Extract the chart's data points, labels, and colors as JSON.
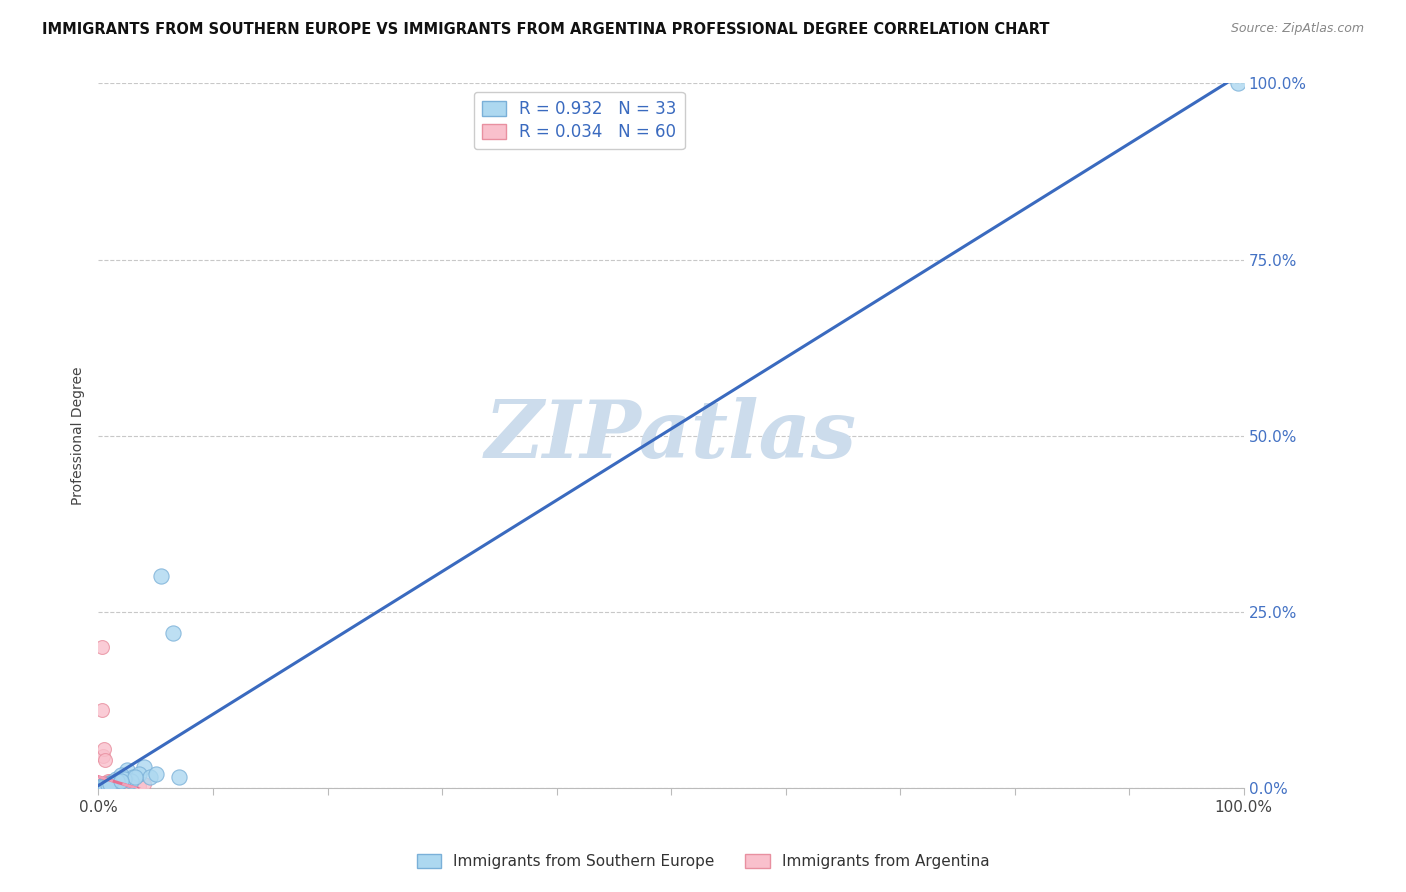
{
  "title": "IMMIGRANTS FROM SOUTHERN EUROPE VS IMMIGRANTS FROM ARGENTINA PROFESSIONAL DEGREE CORRELATION CHART",
  "source": "Source: ZipAtlas.com",
  "ylabel": "Professional Degree",
  "y_tick_values": [
    0.0,
    25.0,
    50.0,
    75.0,
    100.0
  ],
  "legend_entries": [
    {
      "label": "R = 0.932   N = 33",
      "facecolor": "#add8f0",
      "edgecolor": "#7ab0d8"
    },
    {
      "label": "R = 0.034   N = 60",
      "facecolor": "#f9c0cc",
      "edgecolor": "#e890a0"
    }
  ],
  "legend2_entries": [
    {
      "label": "Immigrants from Southern Europe",
      "facecolor": "#add8f0",
      "edgecolor": "#7ab0d8"
    },
    {
      "label": "Immigrants from Argentina",
      "facecolor": "#f9c0cc",
      "edgecolor": "#e890a0"
    }
  ],
  "blue_scatter_x": [
    1.2,
    2.5,
    0.5,
    0.8,
    3.0,
    1.5,
    4.0,
    0.3,
    5.5,
    2.0,
    1.0,
    0.7,
    6.5,
    0.4,
    3.5,
    2.8,
    0.6,
    1.8,
    4.5,
    0.9,
    1.3,
    0.5,
    2.2,
    7.0,
    0.4,
    1.6,
    0.6,
    3.2,
    5.0,
    0.8,
    1.0,
    2.0,
    99.5
  ],
  "blue_scatter_y": [
    0.8,
    2.5,
    0.3,
    0.5,
    1.5,
    1.2,
    3.0,
    0.2,
    30.0,
    1.8,
    0.6,
    0.4,
    22.0,
    0.3,
    2.0,
    1.0,
    0.3,
    0.8,
    1.5,
    0.5,
    0.7,
    0.2,
    1.2,
    1.5,
    0.2,
    0.9,
    0.3,
    1.5,
    2.0,
    0.4,
    0.5,
    1.0,
    100.0
  ],
  "pink_scatter_x": [
    0.2,
    0.5,
    0.8,
    1.0,
    0.3,
    0.4,
    0.6,
    1.2,
    0.1,
    0.7,
    0.9,
    1.5,
    0.3,
    0.5,
    0.2,
    0.4,
    0.8,
    1.1,
    0.6,
    0.3,
    0.7,
    0.5,
    0.9,
    1.3,
    0.4,
    0.2,
    0.6,
    0.8,
    1.0,
    0.3,
    0.5,
    0.7,
    0.4,
    0.6,
    0.9,
    1.2,
    0.3,
    0.5,
    0.8,
    2.0,
    3.5,
    0.2,
    0.4,
    1.8,
    0.7,
    1.5,
    0.3,
    0.6,
    0.4,
    0.5,
    0.2,
    0.8,
    2.5,
    0.5,
    0.3,
    4.0,
    0.4,
    0.6,
    0.9,
    1.0
  ],
  "pink_scatter_y": [
    0.3,
    0.5,
    0.8,
    1.0,
    20.0,
    4.5,
    0.3,
    0.5,
    0.2,
    0.7,
    0.4,
    0.8,
    0.3,
    0.2,
    0.4,
    0.6,
    1.0,
    0.5,
    0.4,
    11.0,
    0.6,
    5.5,
    0.5,
    1.0,
    0.3,
    0.2,
    0.4,
    0.6,
    0.8,
    0.3,
    0.5,
    0.7,
    0.3,
    4.0,
    0.5,
    0.8,
    0.2,
    0.4,
    0.6,
    0.5,
    0.3,
    0.1,
    0.3,
    1.0,
    0.4,
    0.6,
    0.2,
    0.3,
    0.2,
    0.4,
    0.1,
    0.5,
    0.8,
    0.3,
    0.2,
    0.5,
    0.2,
    0.3,
    0.4,
    0.6
  ],
  "blue_scatter_size": 120,
  "pink_scatter_size": 100,
  "blue_color": "#add8f0",
  "blue_edge_color": "#7ab0d8",
  "pink_color": "#f9c0cc",
  "pink_edge_color": "#e890a0",
  "blue_line_color": "#3a6abf",
  "pink_solid_line_color": "#e87090",
  "pink_dash_line_color": "#f0a0b8",
  "xlim": [
    0,
    100
  ],
  "ylim": [
    0,
    100
  ],
  "background_color": "#ffffff",
  "grid_color": "#c8c8c8",
  "watermark": "ZIPatlas",
  "watermark_color": "#ccdcec",
  "title_fontsize": 10.5,
  "source_fontsize": 9
}
